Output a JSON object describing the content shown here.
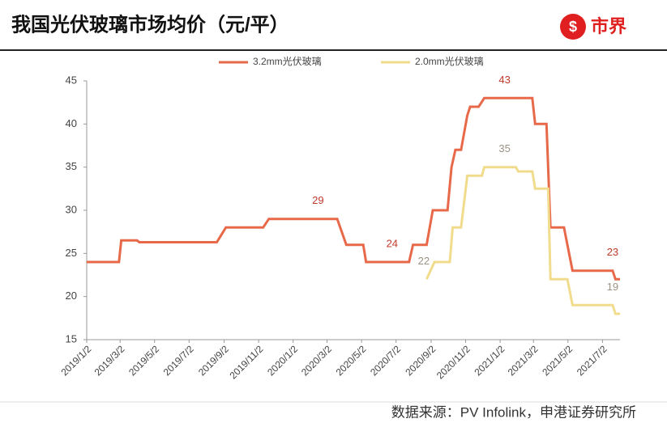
{
  "header": {
    "title": "我国光伏玻璃市场均价（元/平）",
    "logo": "市界"
  },
  "chart_data": {
    "type": "line",
    "legend": "top",
    "xlim": [
      "2019/1/2",
      "2021/8/2"
    ],
    "xticks": [
      "2019/1/2",
      "2019/3/2",
      "2019/5/2",
      "2019/7/2",
      "2019/9/2",
      "2019/11/2",
      "2020/1/2",
      "2020/3/2",
      "2020/5/2",
      "2020/7/2",
      "2020/9/2",
      "2020/11/2",
      "2021/1/2",
      "2021/3/2",
      "2021/5/2",
      "2021/7/2"
    ],
    "ylim": [
      15,
      45
    ],
    "yticks": [
      15,
      20,
      25,
      30,
      35,
      40,
      45
    ],
    "grid": false,
    "series": [
      {
        "name": "3.2mm光伏玻璃",
        "color": "#e8694a",
        "label_color": "#c0392b",
        "x": [
          "2019/1/2",
          "2019/2/28",
          "2019/3/4",
          "2019/4/1",
          "2019/4/5",
          "2019/8/20",
          "2019/9/5",
          "2019/11/10",
          "2019/11/20",
          "2020/3/20",
          "2020/4/5",
          "2020/5/5",
          "2020/5/10",
          "2020/7/25",
          "2020/8/1",
          "2020/8/25",
          "2020/9/5",
          "2020/10/1",
          "2020/10/8",
          "2020/10/15",
          "2020/10/25",
          "2020/11/5",
          "2020/11/10",
          "2020/11/25",
          "2020/12/5",
          "2021/2/28",
          "2021/3/5",
          "2021/3/25",
          "2021/4/1",
          "2021/4/25",
          "2021/5/1",
          "2021/5/10",
          "2021/7/20",
          "2021/7/25",
          "2021/8/2"
        ],
        "values": [
          24,
          24,
          26.5,
          26.5,
          26.3,
          26.3,
          28,
          28,
          29,
          29,
          26,
          26,
          24,
          24,
          26,
          26,
          30,
          30,
          35,
          37,
          37,
          41,
          42,
          42,
          43,
          43,
          40,
          40,
          28,
          28,
          26,
          23,
          23,
          22,
          22
        ],
        "annotations": [
          {
            "x": "2020/2/15",
            "value": 29
          },
          {
            "x": "2020/6/25",
            "value": 24
          },
          {
            "x": "2021/1/10",
            "value": 43
          },
          {
            "x": "2021/7/20",
            "value": 23
          }
        ]
      },
      {
        "name": "2.0mm光伏玻璃",
        "color": "#f0dc8c",
        "label_color": "#9a9383",
        "x": [
          "2020/8/25",
          "2020/9/8",
          "2020/10/5",
          "2020/10/10",
          "2020/10/25",
          "2020/11/5",
          "2020/12/1",
          "2020/12/5",
          "2021/1/30",
          "2021/2/3",
          "2021/2/28",
          "2021/3/5",
          "2021/3/28",
          "2021/4/1",
          "2021/5/1",
          "2021/5/10",
          "2021/7/20",
          "2021/7/25",
          "2021/8/2"
        ],
        "values": [
          22,
          24,
          24,
          28,
          28,
          34,
          34,
          35,
          35,
          34.5,
          34.5,
          32.5,
          32.5,
          22,
          22,
          19,
          19,
          18,
          18
        ],
        "annotations": [
          {
            "x": "2020/8/20",
            "value": 22
          },
          {
            "x": "2021/1/10",
            "value": 35
          },
          {
            "x": "2021/7/20",
            "value": 19
          }
        ]
      }
    ]
  },
  "footer": {
    "source": "数据来源：PV Infolink，申港证券研究所"
  }
}
